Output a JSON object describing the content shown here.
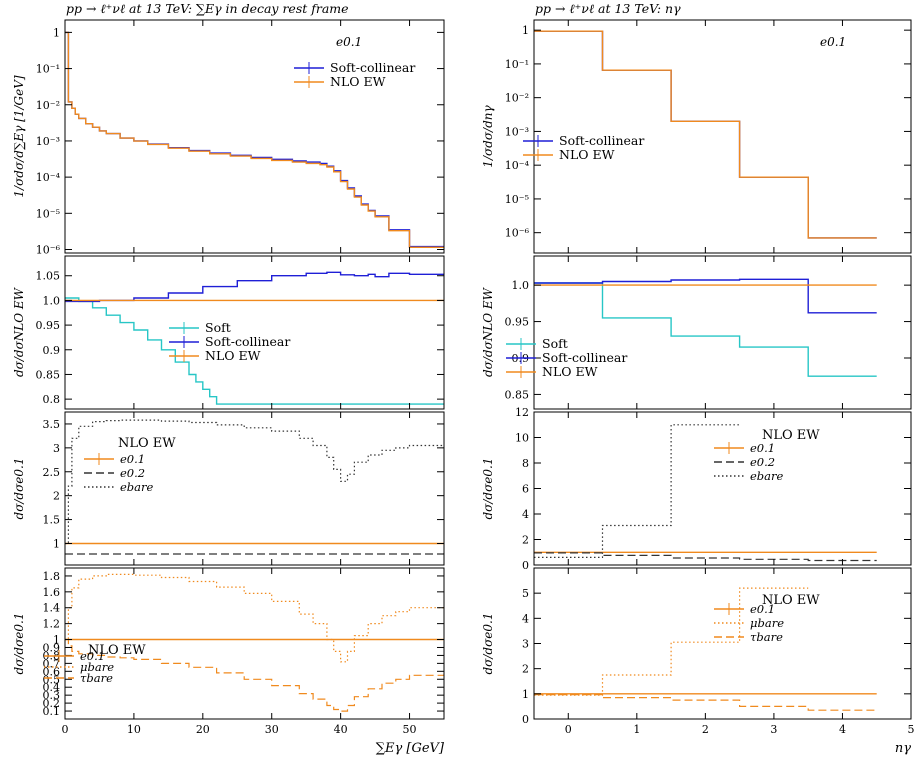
{
  "figure": {
    "left_title": "pp → ℓ⁺νℓ at 13 TeV: ∑Eγ in decay rest frame",
    "right_title": "pp → ℓ⁺νℓ at 13 TeV: nγ"
  },
  "colors": {
    "blue": "#1f1fd6",
    "orange": "#f08a1e",
    "cyan": "#27c6c6",
    "red": "#d34a2a",
    "black": "#333333"
  },
  "chart_data": [
    {
      "id": "left-main",
      "type": "line",
      "log_y": true,
      "xlim": [
        0,
        55
      ],
      "ylim": [
        8e-07,
        2.2
      ],
      "ylabel": "1/σdσ/d∑Eγ [1/GeV]",
      "x_ticks": [
        0,
        10,
        20,
        30,
        40,
        50
      ],
      "y_ticks": [
        1,
        0.1,
        0.01,
        0.001,
        0.0001,
        1e-05,
        1e-06
      ],
      "y_tick_labels": [
        "1",
        "10⁻¹",
        "10⁻²",
        "10⁻³",
        "10⁻⁴",
        "10⁻⁵",
        "10⁻⁶"
      ],
      "annotation": "e0.1",
      "legend": [
        "Soft-collinear",
        "NLO EW"
      ],
      "series": [
        {
          "name": "Soft-collinear",
          "color": "#1f1fd6",
          "dash": "",
          "x": [
            0,
            0.5,
            1,
            1.5,
            2,
            3,
            4,
            5,
            6,
            8,
            10,
            12,
            15,
            18,
            21,
            24,
            27,
            30,
            33,
            35,
            37,
            38,
            39,
            40,
            41,
            42,
            43,
            44,
            45,
            47,
            50,
            55
          ],
          "y": [
            1.0,
            0.012,
            0.008,
            0.0055,
            0.0042,
            0.003,
            0.0024,
            0.0019,
            0.0016,
            0.0012,
            0.001,
            0.00082,
            0.00065,
            0.00054,
            0.00046,
            0.0004,
            0.00035,
            0.00031,
            0.00028,
            0.00026,
            0.00024,
            0.0002,
            0.00015,
            8e-05,
            5e-05,
            3e-05,
            1.8e-05,
            1.2e-05,
            8.5e-06,
            3.5e-06,
            1.2e-06,
            1.2e-06
          ]
        },
        {
          "name": "NLO EW",
          "color": "#f08a1e",
          "dash": "",
          "x": [
            0,
            0.5,
            1,
            1.5,
            2,
            3,
            4,
            5,
            6,
            8,
            10,
            12,
            15,
            18,
            21,
            24,
            27,
            30,
            33,
            35,
            37,
            38,
            39,
            40,
            41,
            42,
            43,
            44,
            45,
            47,
            50,
            55
          ],
          "y": [
            1.0,
            0.012,
            0.008,
            0.0055,
            0.0042,
            0.003,
            0.0024,
            0.0019,
            0.0016,
            0.0012,
            0.00099,
            0.0008,
            0.00063,
            0.00052,
            0.00044,
            0.00038,
            0.00033,
            0.00029,
            0.00026,
            0.00024,
            0.00022,
            0.00019,
            0.00014,
            7.5e-05,
            4.7e-05,
            2.8e-05,
            1.7e-05,
            1.15e-05,
            8e-06,
            3.3e-06,
            1.15e-06,
            1.15e-06
          ]
        }
      ]
    },
    {
      "id": "left-ratio",
      "type": "line",
      "xlim": [
        0,
        55
      ],
      "ylim": [
        0.78,
        1.09
      ],
      "ylabel": "dσ/dσNLO EW",
      "x_ticks": [
        0,
        10,
        20,
        30,
        40,
        50
      ],
      "y_ticks": [
        0.8,
        0.85,
        0.9,
        0.95,
        1.0,
        1.05
      ],
      "y_tick_labels": [
        "0.8",
        "0.85",
        "0.9",
        "0.95",
        "1.0",
        "1.05"
      ],
      "legend": [
        "Soft",
        "Soft-collinear",
        "NLO EW"
      ],
      "series": [
        {
          "name": "Soft",
          "color": "#27c6c6",
          "dash": "",
          "x": [
            0,
            2,
            4,
            6,
            8,
            10,
            12,
            14,
            16,
            18,
            19,
            20,
            21,
            22
          ],
          "y": [
            1.005,
            0.998,
            0.985,
            0.97,
            0.955,
            0.94,
            0.92,
            0.9,
            0.875,
            0.85,
            0.835,
            0.82,
            0.805,
            0.79
          ]
        },
        {
          "name": "Soft-collinear",
          "color": "#1f1fd6",
          "dash": "",
          "x": [
            0,
            5,
            10,
            15,
            20,
            25,
            30,
            35,
            38,
            40,
            42,
            44,
            45,
            47,
            50,
            55
          ],
          "y": [
            0.998,
            1.0,
            1.005,
            1.015,
            1.028,
            1.04,
            1.05,
            1.055,
            1.057,
            1.052,
            1.05,
            1.053,
            1.048,
            1.055,
            1.053,
            1.053
          ]
        },
        {
          "name": "NLO EW",
          "color": "#f08a1e",
          "dash": "",
          "x": [
            0,
            55
          ],
          "y": [
            1.0,
            1.0
          ]
        }
      ]
    },
    {
      "id": "left-iso",
      "type": "line",
      "xlim": [
        0,
        55
      ],
      "ylim": [
        0.55,
        3.75
      ],
      "ylabel": "dσ/dσe0.1",
      "x_ticks": [
        0,
        10,
        20,
        30,
        40,
        50
      ],
      "y_ticks": [
        1,
        1.5,
        2,
        2.5,
        3,
        3.5
      ],
      "y_tick_labels": [
        "1",
        "1.5",
        "2",
        "2.5",
        "3",
        "3.5"
      ],
      "legend_title": "NLO EW",
      "legend": [
        "e0.1",
        "e0.2",
        "ebare"
      ],
      "series": [
        {
          "name": "e0.1",
          "color": "#f08a1e",
          "dash": "",
          "x": [
            0,
            55
          ],
          "y": [
            1.0,
            1.0
          ]
        },
        {
          "name": "e0.2",
          "color": "#333333",
          "dash": "8,4",
          "x": [
            0,
            55
          ],
          "y": [
            0.78,
            0.8
          ]
        },
        {
          "name": "ebare",
          "color": "#333333",
          "dash": "1.5,2.5",
          "x": [
            0,
            0.5,
            1,
            2,
            4,
            6,
            8,
            10,
            14,
            18,
            22,
            26,
            30,
            34,
            36,
            38,
            39,
            40,
            41,
            42,
            44,
            46,
            48,
            50,
            55
          ],
          "y": [
            1.0,
            2.2,
            3.2,
            3.45,
            3.55,
            3.57,
            3.58,
            3.58,
            3.56,
            3.53,
            3.48,
            3.42,
            3.35,
            3.2,
            3.05,
            2.8,
            2.55,
            2.3,
            2.45,
            2.7,
            2.85,
            2.95,
            3.0,
            3.05,
            3.05
          ]
        }
      ]
    },
    {
      "id": "left-flavor",
      "type": "line",
      "xlim": [
        0,
        55
      ],
      "ylim": [
        0,
        1.9
      ],
      "ylabel": "dσ/dσe0.1",
      "xlabel": "∑Eγ [GeV]",
      "x_ticks": [
        0,
        10,
        20,
        30,
        40,
        50
      ],
      "y_ticks": [
        0.1,
        0.2,
        0.3,
        0.4,
        0.5,
        0.6,
        0.7,
        0.8,
        0.9,
        1,
        1.2,
        1.4,
        1.6,
        1.8
      ],
      "y_tick_labels": [
        "0.1",
        "0.2",
        "0.3",
        "0.4",
        "0.5",
        "0.6",
        "0.7",
        "0.8",
        "0.9",
        "1",
        "1.2",
        "1.4",
        "1.6",
        "1.8"
      ],
      "legend_title": "NLO EW",
      "legend": [
        "e0.1",
        "μbare",
        "τbare"
      ],
      "series": [
        {
          "name": "e0.1",
          "color": "#f08a1e",
          "dash": "",
          "x": [
            0,
            55
          ],
          "y": [
            1.0,
            1.0
          ]
        },
        {
          "name": "μbare",
          "color": "#f08a1e",
          "dash": "1.5,2.5",
          "x": [
            0,
            0.5,
            1,
            2,
            4,
            6,
            8,
            10,
            14,
            18,
            22,
            26,
            30,
            34,
            36,
            38,
            39,
            40,
            41,
            42,
            44,
            46,
            48,
            50,
            55
          ],
          "y": [
            1.0,
            1.4,
            1.65,
            1.76,
            1.8,
            1.82,
            1.82,
            1.81,
            1.78,
            1.73,
            1.66,
            1.58,
            1.48,
            1.32,
            1.2,
            1.0,
            0.85,
            0.72,
            0.85,
            1.05,
            1.2,
            1.3,
            1.35,
            1.4,
            1.4
          ]
        },
        {
          "name": "τbare",
          "color": "#f08a1e",
          "dash": "8,4",
          "x": [
            0,
            0.5,
            1,
            2,
            4,
            6,
            8,
            10,
            14,
            18,
            22,
            26,
            30,
            34,
            36,
            38,
            39,
            40,
            41,
            42,
            44,
            46,
            48,
            50,
            55
          ],
          "y": [
            1.0,
            0.92,
            0.85,
            0.82,
            0.8,
            0.78,
            0.77,
            0.75,
            0.7,
            0.65,
            0.58,
            0.5,
            0.42,
            0.32,
            0.25,
            0.17,
            0.12,
            0.1,
            0.17,
            0.28,
            0.38,
            0.45,
            0.5,
            0.55,
            0.58
          ]
        }
      ]
    },
    {
      "id": "right-main",
      "type": "line",
      "log_y": true,
      "xlim": [
        -0.5,
        5
      ],
      "ylim": [
        2.5e-07,
        2
      ],
      "ylabel": "1/σdσ/dnγ",
      "x_ticks": [
        0,
        1,
        2,
        3,
        4,
        5
      ],
      "y_ticks": [
        1,
        0.1,
        0.01,
        0.001,
        0.0001,
        1e-05,
        1e-06
      ],
      "y_tick_labels": [
        "1",
        "10⁻¹",
        "10⁻²",
        "10⁻³",
        "10⁻⁴",
        "10⁻⁵",
        "10⁻⁶"
      ],
      "annotation": "e0.1",
      "legend": [
        "Soft-collinear",
        "NLO EW"
      ],
      "series": [
        {
          "name": "Soft-collinear",
          "color": "#1f1fd6",
          "dash": "",
          "x": [
            0,
            1,
            2,
            3,
            4
          ],
          "y": [
            0.93,
            0.065,
            0.002,
            4.4e-05,
            7e-07
          ]
        },
        {
          "name": "NLO EW",
          "color": "#f08a1e",
          "dash": "",
          "x": [
            0,
            1,
            2,
            3,
            4
          ],
          "y": [
            0.93,
            0.065,
            0.002,
            4.4e-05,
            7e-07
          ]
        }
      ]
    },
    {
      "id": "right-ratio",
      "type": "line",
      "xlim": [
        -0.5,
        5
      ],
      "ylim": [
        0.83,
        1.04
      ],
      "ylabel": "dσ/dσNLO EW",
      "x_ticks": [
        0,
        1,
        2,
        3,
        4,
        5
      ],
      "y_ticks": [
        0.85,
        0.9,
        0.95,
        1.0
      ],
      "y_tick_labels": [
        "0.85",
        "0.9",
        "0.95",
        "1.0"
      ],
      "legend": [
        "Soft",
        "Soft-collinear",
        "NLO EW"
      ],
      "series": [
        {
          "name": "Soft",
          "color": "#27c6c6",
          "dash": "",
          "x": [
            0,
            1,
            2,
            3,
            4
          ],
          "y": [
            1.003,
            0.955,
            0.93,
            0.915,
            0.875
          ]
        },
        {
          "name": "Soft-collinear",
          "color": "#1f1fd6",
          "dash": "",
          "x": [
            0,
            1,
            2,
            3,
            4
          ],
          "y": [
            1.003,
            1.005,
            1.007,
            1.008,
            0.962
          ]
        },
        {
          "name": "NLO EW",
          "color": "#f08a1e",
          "dash": "",
          "x": [
            0,
            1,
            2,
            3,
            4
          ],
          "y": [
            1.0,
            1.0,
            1.0,
            1.0,
            1.0
          ]
        }
      ]
    },
    {
      "id": "right-iso",
      "type": "line",
      "xlim": [
        -0.5,
        5
      ],
      "ylim": [
        0,
        12
      ],
      "ylabel": "dσ/dσe0.1",
      "x_ticks": [
        0,
        1,
        2,
        3,
        4,
        5
      ],
      "y_ticks": [
        0,
        2,
        4,
        6,
        8,
        10,
        12
      ],
      "y_tick_labels": [
        "0",
        "2",
        "4",
        "6",
        "8",
        "10",
        "12"
      ],
      "legend_title": "NLO EW",
      "legend": [
        "e0.1",
        "e0.2",
        "ebare"
      ],
      "series": [
        {
          "name": "e0.1",
          "color": "#f08a1e",
          "dash": "",
          "x": [
            0,
            1,
            2,
            3,
            4
          ],
          "y": [
            1,
            1,
            1,
            1,
            1
          ]
        },
        {
          "name": "e0.2",
          "color": "#333333",
          "dash": "8,4",
          "x": [
            0,
            1,
            2,
            3,
            4
          ],
          "y": [
            0.95,
            0.75,
            0.55,
            0.45,
            0.35
          ]
        },
        {
          "name": "ebare",
          "color": "#333333",
          "dash": "1.5,2.5",
          "x": [
            0,
            1,
            2
          ],
          "y": [
            0.6,
            3.1,
            11
          ]
        }
      ]
    },
    {
      "id": "right-flavor",
      "type": "line",
      "xlim": [
        -0.5,
        5
      ],
      "ylim": [
        0,
        6
      ],
      "ylabel": "dσ/dσe0.1",
      "xlabel": "nγ",
      "x_ticks": [
        0,
        1,
        2,
        3,
        4,
        5
      ],
      "y_ticks": [
        0,
        1,
        2,
        3,
        4,
        5
      ],
      "y_tick_labels": [
        "0",
        "1",
        "2",
        "3",
        "4",
        "5"
      ],
      "legend_title": "NLO EW",
      "legend": [
        "e0.1",
        "μbare",
        "τbare"
      ],
      "series": [
        {
          "name": "e0.1",
          "color": "#f08a1e",
          "dash": "",
          "x": [
            0,
            1,
            2,
            3,
            4
          ],
          "y": [
            1,
            1,
            1,
            1,
            1
          ]
        },
        {
          "name": "μbare",
          "color": "#f08a1e",
          "dash": "1.5,2.5",
          "x": [
            0,
            1,
            2,
            3
          ],
          "y": [
            0.95,
            1.75,
            3.05,
            5.2
          ]
        },
        {
          "name": "τbare",
          "color": "#f08a1e",
          "dash": "8,4",
          "x": [
            0,
            1,
            2,
            3,
            4
          ],
          "y": [
            0.97,
            0.85,
            0.75,
            0.5,
            0.35
          ]
        }
      ]
    }
  ]
}
